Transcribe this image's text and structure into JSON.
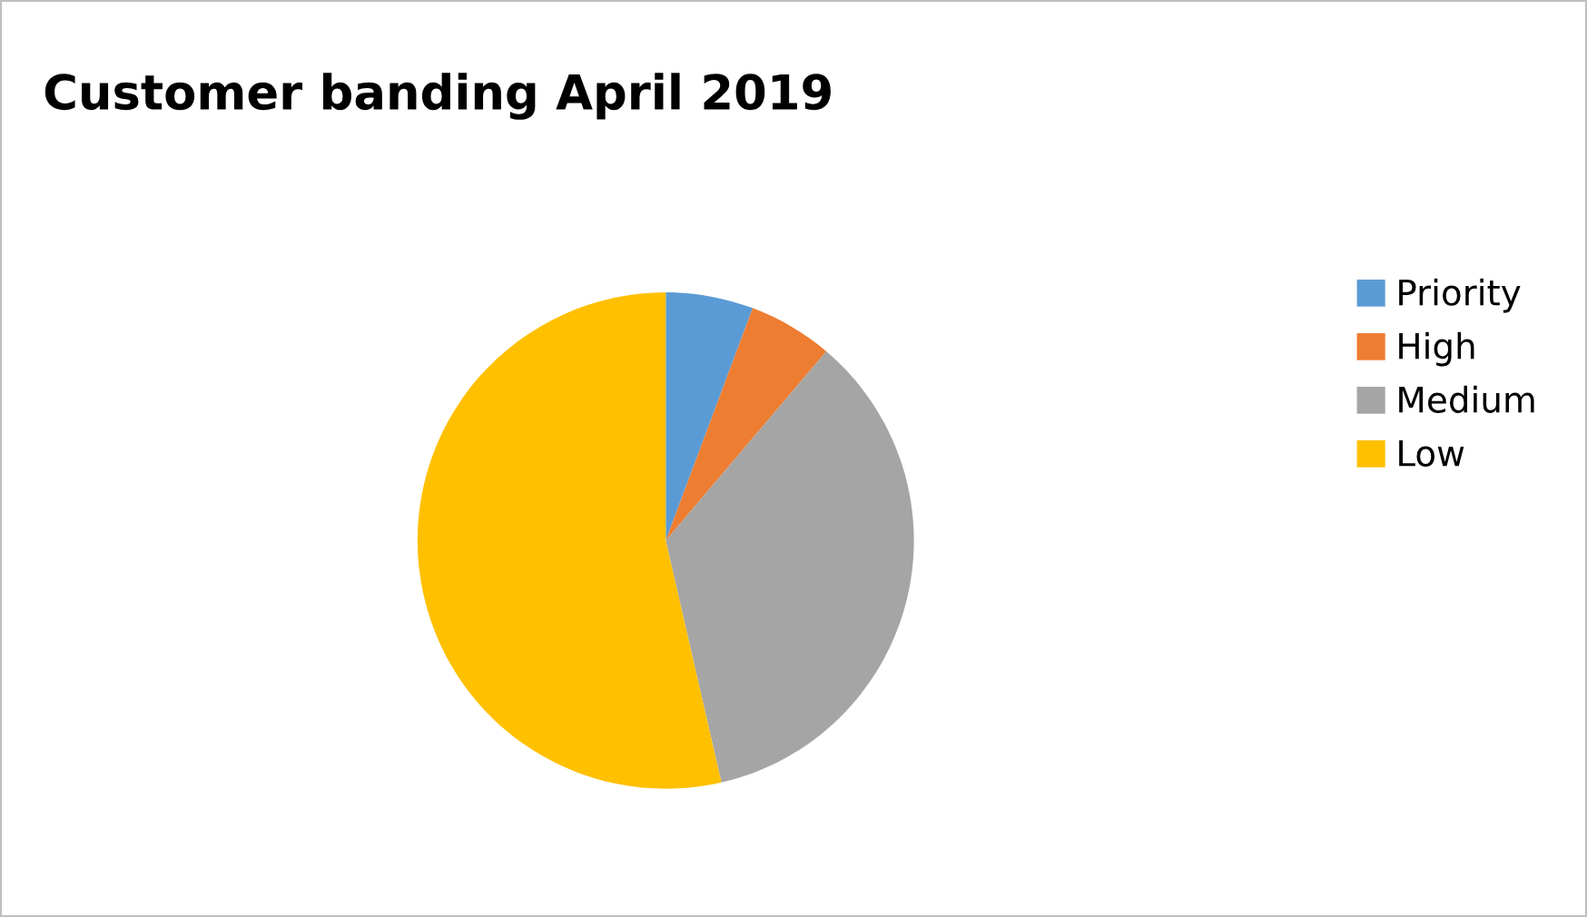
{
  "chart_data": {
    "type": "pie",
    "title": "Customer banding April 2019",
    "categories": [
      "Priority",
      "High",
      "Medium",
      "Low"
    ],
    "values": [
      5.7,
      5.5,
      35.2,
      53.6
    ],
    "colors": [
      "#5b9bd5",
      "#ed7d31",
      "#a5a5a5",
      "#ffc000"
    ],
    "legend": "right"
  }
}
